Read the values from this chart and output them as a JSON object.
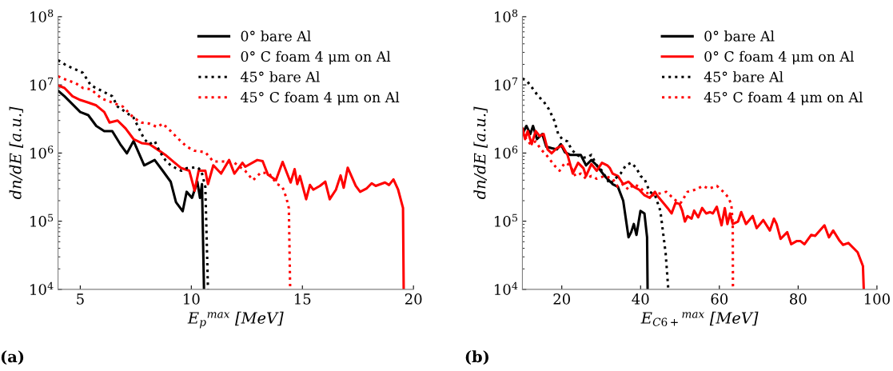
{
  "chart_data": [
    {
      "type": "line",
      "xlabel": "E$_{p}$$^{max}$ [MeV]",
      "ylabel": "dn/dE [a.u.]",
      "xlim": [
        4,
        20
      ],
      "xticks": [
        5,
        10,
        15,
        20
      ],
      "ylim": [
        10000,
        100000000
      ],
      "yticks": [
        {
          "value": 10000,
          "label": "10$^{4}$"
        },
        {
          "value": 100000,
          "label": "10$^{5}$"
        },
        {
          "value": 1000000,
          "label": "10$^{6}$"
        },
        {
          "value": 10000000,
          "label": "10$^{7}$"
        },
        {
          "value": 100000000,
          "label": "10$^{8}$"
        }
      ],
      "log": "y",
      "grid": false,
      "legend": "top right",
      "annotations": [
        "(a)"
      ],
      "series": [
        {
          "name": "0° bare Al",
          "color": "#000000",
          "line_style": "solid",
          "x": [
            4.0,
            4.29,
            4.65,
            5.0,
            5.36,
            5.72,
            6.08,
            6.44,
            6.8,
            7.1,
            7.4,
            7.88,
            8.35,
            8.71,
            9.07,
            9.31,
            9.61,
            9.79,
            10.03,
            10.27,
            10.39,
            10.48,
            10.57
          ],
          "values": [
            8200000,
            6800000,
            5200000,
            4000000,
            3600000,
            2500000,
            2100000,
            2100000,
            1350000,
            990000,
            1500000,
            660000,
            790000,
            550000,
            380000,
            190000,
            140000,
            270000,
            220000,
            380000,
            220000,
            350000,
            10000
          ]
        },
        {
          "name": "0° C foam 4 μm on Al",
          "color": "#ff0000",
          "line_style": "solid",
          "x": [
            4.0,
            4.29,
            4.65,
            5.0,
            5.36,
            5.72,
            6.08,
            6.32,
            6.68,
            7.04,
            7.4,
            7.76,
            8.11,
            8.47,
            8.83,
            9.19,
            9.55,
            9.91,
            10.15,
            10.33,
            10.63,
            10.75,
            10.99,
            11.34,
            11.7,
            11.94,
            12.3,
            12.43,
            12.97,
            13.21,
            13.45,
            13.81,
            14.11,
            14.47,
            14.65,
            14.77,
            14.89,
            15.17,
            15.34,
            15.49,
            15.79,
            16.03,
            16.23,
            16.51,
            16.72,
            16.86,
            17.04,
            17.4,
            17.6,
            17.88,
            18.12,
            18.3,
            18.72,
            18.9,
            19.1,
            19.31,
            19.53,
            19.56
          ],
          "values": [
            9800000,
            9000000,
            6800000,
            6000000,
            5500000,
            5000000,
            4000000,
            2800000,
            3000000,
            2300000,
            1600000,
            1400000,
            1350000,
            1130000,
            940000,
            750000,
            600000,
            550000,
            280000,
            550000,
            550000,
            350000,
            660000,
            500000,
            790000,
            500000,
            720000,
            630000,
            790000,
            760000,
            480000,
            400000,
            740000,
            370000,
            580000,
            350000,
            460000,
            210000,
            340000,
            290000,
            330000,
            380000,
            210000,
            290000,
            470000,
            310000,
            610000,
            330000,
            270000,
            300000,
            360000,
            330000,
            370000,
            340000,
            410000,
            290000,
            156000,
            10000
          ]
        },
        {
          "name": "45° bare Al",
          "color": "#000000",
          "line_style": "dotted",
          "x": [
            4.0,
            4.41,
            4.77,
            5.12,
            5.48,
            5.96,
            6.44,
            6.68,
            7.04,
            7.4,
            7.64,
            7.88,
            8.11,
            8.35,
            8.59,
            8.83,
            9.07,
            9.31,
            9.55,
            9.79,
            10.27,
            10.45,
            10.63,
            10.75
          ],
          "values": [
            23000000,
            19000000,
            17000000,
            15000000,
            9800000,
            8200000,
            6800000,
            4800000,
            4000000,
            3300000,
            2300000,
            1600000,
            1350000,
            1500000,
            1030000,
            790000,
            660000,
            600000,
            550000,
            600000,
            620000,
            550000,
            320000,
            10000
          ]
        },
        {
          "name": "45° C foam 4 μm on Al",
          "color": "#ff0000",
          "line_style": "dotted",
          "x": [
            4.0,
            4.41,
            4.77,
            5.12,
            5.48,
            5.96,
            6.44,
            6.92,
            7.4,
            7.76,
            8.11,
            8.47,
            8.71,
            9.07,
            9.43,
            9.79,
            10.15,
            10.63,
            10.99,
            11.46,
            11.94,
            12.42,
            12.78,
            13.14,
            13.5,
            13.86,
            14.1,
            14.28,
            14.39,
            14.45
          ],
          "values": [
            13400000,
            11700000,
            10700000,
            9000000,
            8600000,
            6300000,
            5500000,
            4800000,
            3300000,
            2800000,
            2700000,
            2400000,
            2700000,
            2100000,
            1600000,
            1240000,
            1080000,
            1030000,
            750000,
            750000,
            720000,
            550000,
            400000,
            520000,
            500000,
            350000,
            320000,
            220000,
            155000,
            10000
          ]
        }
      ]
    },
    {
      "type": "line",
      "xlabel": "E$_{C6+}$$^{max}$ [MeV]",
      "ylabel": "dn/dE [a.u.]",
      "xlim": [
        10,
        100
      ],
      "xticks": [
        20,
        40,
        60,
        80,
        100
      ],
      "ylim": [
        10000,
        100000000
      ],
      "yticks": [
        {
          "value": 10000,
          "label": "10$^{4}$"
        },
        {
          "value": 100000,
          "label": "10$^{5}$"
        },
        {
          "value": 1000000,
          "label": "10$^{6}$"
        },
        {
          "value": 10000000,
          "label": "10$^{7}$"
        },
        {
          "value": 100000000,
          "label": "10$^{8}$"
        }
      ],
      "log": "y",
      "grid": false,
      "legend": "top right",
      "annotations": [
        "(b)"
      ],
      "series": [
        {
          "name": "0° bare Al",
          "color": "#000000",
          "line_style": "solid",
          "x": [
            10,
            11.01,
            12.02,
            12.69,
            13.7,
            15.05,
            16.06,
            17.41,
            18.75,
            19.76,
            20.77,
            22.12,
            24.81,
            26.16,
            27.51,
            28.86,
            30.88,
            32.9,
            34.24,
            35.59,
            36.94,
            37.61,
            38.28,
            38.96,
            39.97,
            40.98,
            41.65,
            41.78
          ],
          "values": [
            1900000,
            2500000,
            1900000,
            2500000,
            1600000,
            1900000,
            1240000,
            1180000,
            1130000,
            1350000,
            1030000,
            940000,
            940000,
            660000,
            790000,
            660000,
            460000,
            350000,
            320000,
            200000,
            58000,
            69000,
            91000,
            63000,
            142000,
            130000,
            58000,
            10000
          ]
        },
        {
          "name": "0° C foam 4 μm on Al",
          "color": "#ff0000",
          "line_style": "solid",
          "x": [
            10,
            10.67,
            11.35,
            12.36,
            13.37,
            14.38,
            15.39,
            16.4,
            17.41,
            18.75,
            20.1,
            21.45,
            22.79,
            24.14,
            25.49,
            26.16,
            27.51,
            28.86,
            30.2,
            31.55,
            32.22,
            32.9,
            34.24,
            35.59,
            36.94,
            38.28,
            39.63,
            40.98,
            42.32,
            43.67,
            44.16,
            46.86,
            47.87,
            48.89,
            49.9,
            50.57,
            51.26,
            51.92,
            52.94,
            53.6,
            54.62,
            55.63,
            56.64,
            57.65,
            58.34,
            59.35,
            60.56,
            61.38,
            62.05,
            62.71,
            63.4,
            64.74,
            65.55,
            66.76,
            68.46,
            69.47,
            71.15,
            72.83,
            73.85,
            74.53,
            75.55,
            77.23,
            78.24,
            79.59,
            80.61,
            81.62,
            83.3,
            84.31,
            86.68,
            87.81,
            88.9,
            90.39,
            91.4,
            92.75,
            95.1,
            96.45,
            96.66
          ],
          "values": [
            2300000,
            1600000,
            2100000,
            1350000,
            2100000,
            1770000,
            1900000,
            1130000,
            990000,
            1180000,
            1290000,
            940000,
            500000,
            720000,
            600000,
            460000,
            690000,
            550000,
            720000,
            660000,
            600000,
            500000,
            460000,
            350000,
            380000,
            320000,
            290000,
            240000,
            220000,
            270000,
            240000,
            156000,
            130000,
            187000,
            179000,
            143000,
            99000,
            119000,
            109000,
            143000,
            114000,
            156000,
            130000,
            136000,
            130000,
            163000,
            87000,
            156000,
            91000,
            130000,
            91000,
            99000,
            136000,
            91000,
            119000,
            79000,
            104000,
            73000,
            109000,
            91000,
            55000,
            69000,
            46000,
            51000,
            51000,
            46000,
            63000,
            61000,
            87000,
            58000,
            73000,
            53000,
            45000,
            48000,
            35000,
            22000,
            10000
          ]
        },
        {
          "name": "45° bare Al",
          "color": "#000000",
          "line_style": "dotted",
          "x": [
            10,
            11.01,
            12.02,
            13.03,
            14.04,
            15.39,
            16.73,
            18.08,
            19.09,
            20.1,
            21.45,
            22.46,
            23.8,
            25.15,
            26.5,
            27.51,
            28.86,
            30.2,
            32.22,
            33.57,
            34.92,
            36.26,
            37.61,
            38.96,
            39.97,
            40.98,
            42.32,
            43.67,
            45.02,
            46.36,
            47.04
          ],
          "values": [
            12300000,
            11700000,
            9800000,
            8200000,
            6800000,
            5700000,
            4400000,
            3000000,
            1900000,
            1600000,
            1480000,
            1130000,
            940000,
            860000,
            860000,
            940000,
            660000,
            550000,
            350000,
            420000,
            500000,
            660000,
            720000,
            600000,
            460000,
            420000,
            270000,
            240000,
            142000,
            34000,
            10000
          ]
        },
        {
          "name": "45° C foam 4 μm on Al",
          "color": "#ff0000",
          "line_style": "dotted",
          "x": [
            10,
            11.01,
            12.02,
            13.37,
            14.72,
            16.06,
            17.07,
            18.08,
            19.43,
            20.77,
            22.12,
            23.47,
            24.81,
            26.16,
            27.51,
            28.86,
            30.88,
            32.9,
            34.24,
            35.59,
            36.94,
            38.28,
            39.63,
            40.98,
            43.0,
            46.52,
            49.56,
            50.24,
            51.92,
            53.95,
            55.83,
            57.33,
            59.35,
            61.03,
            62.39,
            63.06,
            63.4,
            63.45
          ],
          "values": [
            2100000,
            1600000,
            1350000,
            1480000,
            1130000,
            940000,
            790000,
            660000,
            550000,
            720000,
            660000,
            460000,
            500000,
            420000,
            460000,
            420000,
            460000,
            420000,
            320000,
            350000,
            290000,
            350000,
            320000,
            270000,
            240000,
            270000,
            187000,
            187000,
            270000,
            290000,
            330000,
            300000,
            330000,
            270000,
            220000,
            170000,
            91000,
            10000
          ]
        }
      ]
    }
  ]
}
